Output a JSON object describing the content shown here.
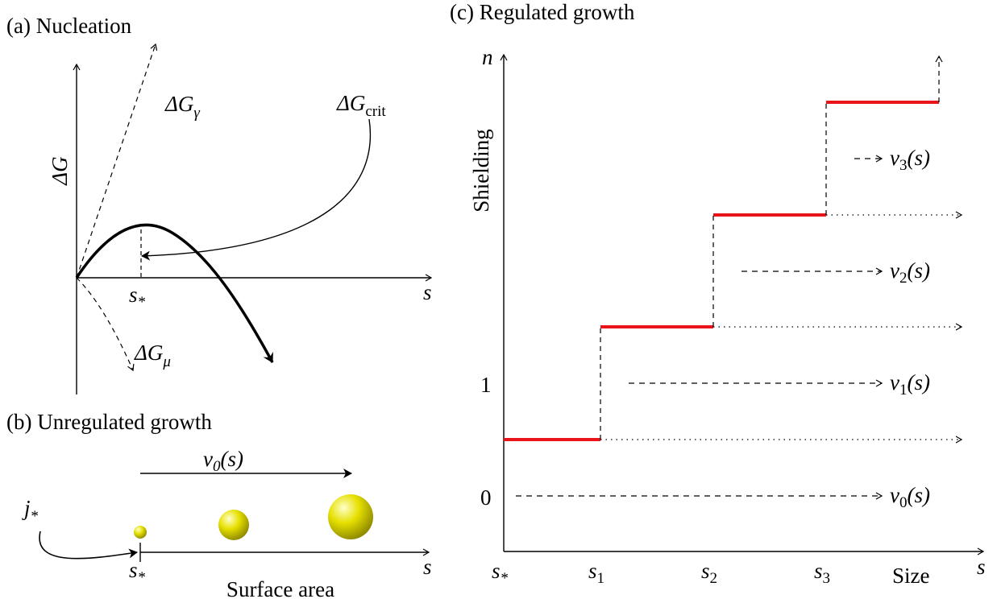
{
  "panels": {
    "a": {
      "title": "(a) Nucleation",
      "y_axis_label": "ΔG",
      "x_axis_label": "s",
      "s_star": {
        "base": "s",
        "sub": "*"
      },
      "dg_gamma": {
        "base": "ΔG",
        "sub": "γ"
      },
      "dg_mu": {
        "base": "ΔG",
        "sub": "μ"
      },
      "dg_crit": {
        "base": "ΔG",
        "sub": "crit"
      }
    },
    "b": {
      "title": "(b) Unregulated growth",
      "velocity": "v0(s)",
      "flux": {
        "base": "j",
        "sub": "*"
      },
      "s_star": {
        "base": "s",
        "sub": "*"
      },
      "x_axis_label": "s",
      "x_axis_caption": "Surface area",
      "sphere_color": "#e6e000"
    },
    "c": {
      "title": "(c) Regulated growth",
      "y_axis_top": "n",
      "y_axis_label": "Shielding",
      "y_ticks": [
        "0",
        "1"
      ],
      "x_axis_label": "s",
      "x_axis_caption": "Size",
      "x_ticks": [
        {
          "base": "s",
          "sub": "*"
        },
        {
          "base": "s",
          "sub": "1"
        },
        {
          "base": "s",
          "sub": "2"
        },
        {
          "base": "s",
          "sub": "3"
        }
      ],
      "velocities": [
        {
          "base": "v",
          "sub": "0",
          "arg": "(s)"
        },
        {
          "base": "v",
          "sub": "1",
          "arg": "(s)"
        },
        {
          "base": "v",
          "sub": "2",
          "arg": "(s)"
        },
        {
          "base": "v",
          "sub": "3",
          "arg": "(s)"
        }
      ],
      "step_color": "#e8141a"
    }
  }
}
